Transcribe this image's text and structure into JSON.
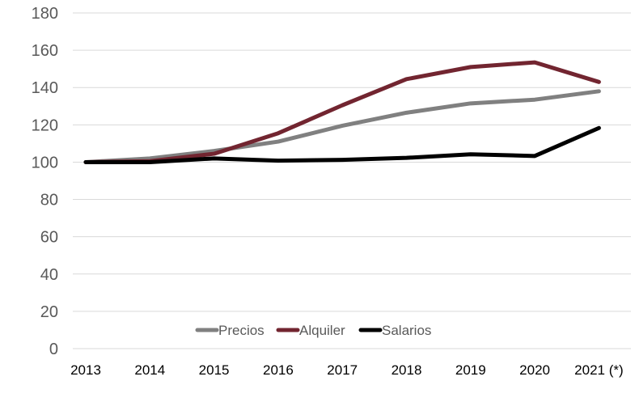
{
  "chart_data": {
    "type": "line",
    "title": "",
    "xlabel": "",
    "ylabel": "",
    "categories": [
      "2013",
      "2014",
      "2015",
      "2016",
      "2017",
      "2018",
      "2019",
      "2020",
      "2021 (*)"
    ],
    "ylim": [
      0,
      180
    ],
    "yticks": [
      0,
      20,
      40,
      60,
      80,
      100,
      120,
      140,
      160,
      180
    ],
    "grid": true,
    "legend_position": "bottom-center",
    "series": [
      {
        "name": "Precios",
        "color": "#808080",
        "values": [
          100,
          102,
          106,
          111,
          119.5,
          126.5,
          131.5,
          133.5,
          138
        ]
      },
      {
        "name": "Alquiler",
        "color": "#722530",
        "values": [
          100,
          100.5,
          104.5,
          115.5,
          130.5,
          144.5,
          151,
          153.5,
          143
        ]
      },
      {
        "name": "Salarios",
        "color": "#000000",
        "values": [
          100,
          100,
          102,
          100.8,
          101.2,
          102.3,
          104.2,
          103.3,
          118.3
        ]
      }
    ]
  }
}
